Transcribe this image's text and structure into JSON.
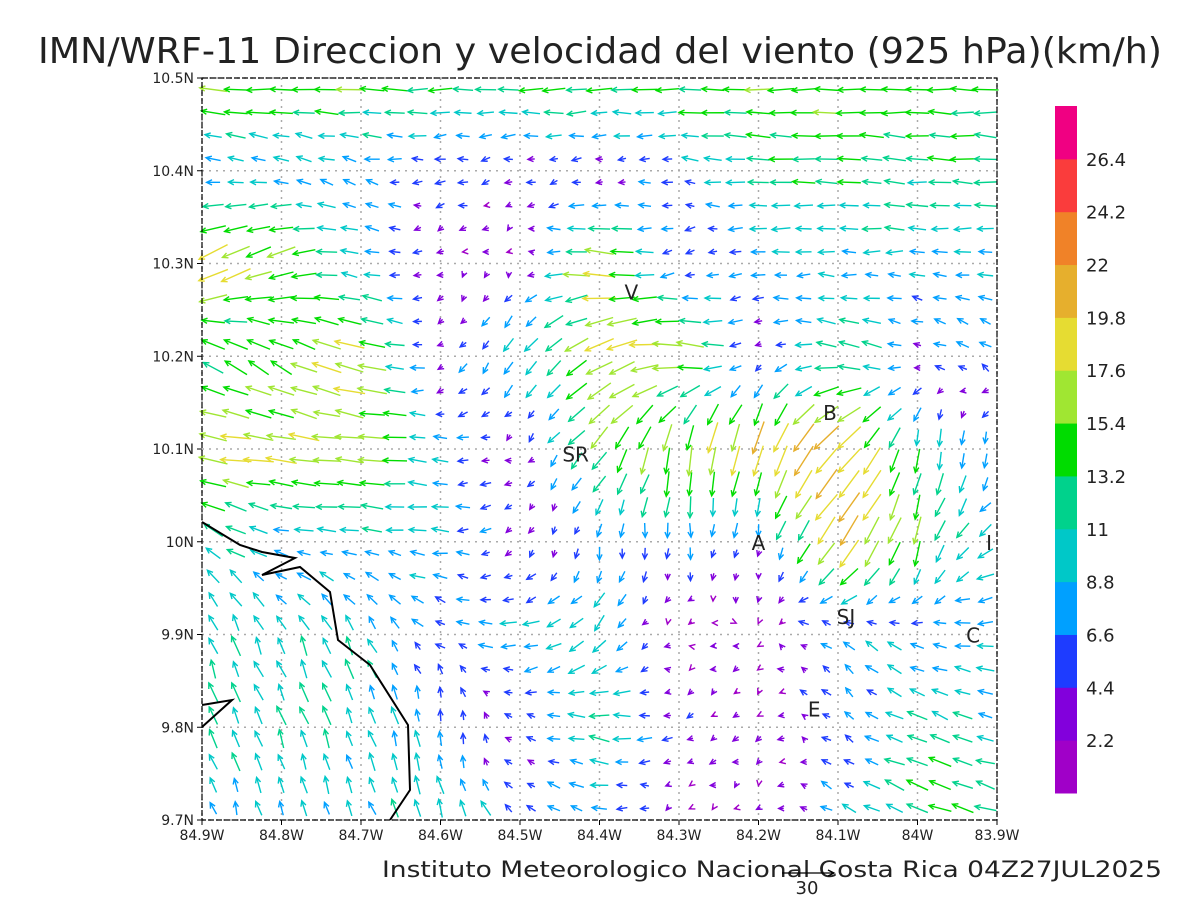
{
  "title": "IMN/WRF-11 Direccion y velocidad del viento (925 hPa)(km/h)",
  "footer": "Instituto Meteorologico Nacional Costa Rica 04Z27JUL2025",
  "reference_vector_label": "30",
  "places": [
    {
      "label": "V",
      "lon": -84.36,
      "lat": 10.27
    },
    {
      "label": "SR",
      "lon": -84.43,
      "lat": 10.095
    },
    {
      "label": "B",
      "lon": -84.11,
      "lat": 10.14
    },
    {
      "label": "A",
      "lon": -84.2,
      "lat": 10.0
    },
    {
      "label": "SJ",
      "lon": -84.09,
      "lat": 9.92
    },
    {
      "label": "C",
      "lon": -83.93,
      "lat": 9.9
    },
    {
      "label": "E",
      "lon": -84.13,
      "lat": 9.82
    },
    {
      "label": "I",
      "lon": -83.91,
      "lat": 10.0
    }
  ],
  "colorbar": {
    "labels": [
      "2.2",
      "4.4",
      "6.6",
      "8.8",
      "11",
      "13.2",
      "15.4",
      "17.6",
      "19.8",
      "22",
      "24.2",
      "26.4"
    ],
    "colors": [
      "#a000c8",
      "#8200dc",
      "#1e3cff",
      "#00a0ff",
      "#00c8c8",
      "#00d28c",
      "#00dc00",
      "#a0e632",
      "#e6dc32",
      "#e6af2d",
      "#f08228",
      "#fa3c3c",
      "#f00082"
    ]
  },
  "chart_data": {
    "type": "vector-field",
    "title": "IMN/WRF-11 Direccion y velocidad del viento (925 hPa)(km/h)",
    "units": "km/h",
    "x_ticks": [
      "84.9W",
      "84.8W",
      "84.7W",
      "84.6W",
      "84.5W",
      "84.4W",
      "84.3W",
      "84.2W",
      "84.1W",
      "84W",
      "83.9W"
    ],
    "y_ticks": [
      "9.7N",
      "9.8N",
      "9.9N",
      "10N",
      "10.1N",
      "10.2N",
      "10.3N",
      "10.4N",
      "10.5N"
    ],
    "xlim": [
      -84.9,
      -83.9
    ],
    "ylim": [
      9.7,
      10.5
    ],
    "grid": true,
    "grid_lons": [
      -84.9,
      -84.8,
      -84.7,
      -84.6,
      -84.5,
      -84.4,
      -84.3,
      -84.2,
      -84.1,
      -84.0,
      -83.9
    ],
    "grid_lats_top_to_bottom": [
      10.5,
      10.4,
      10.3,
      10.2,
      10.1,
      10.0,
      9.9,
      9.8,
      9.7
    ],
    "u": [
      [
        -17,
        -15,
        -15,
        -14,
        -14,
        -15,
        -15,
        -15,
        -15,
        -14,
        -14
      ],
      [
        -8,
        -8,
        -7,
        -5,
        -4,
        -3,
        -6,
        -13,
        -13,
        -13,
        -13
      ],
      [
        -18,
        -16,
        -8,
        -2,
        -1,
        -20,
        -3,
        -8,
        -8,
        -8,
        -8
      ],
      [
        -12,
        -12,
        -18,
        -2,
        -6,
        -15,
        -20,
        -3,
        -15,
        -5,
        -6
      ],
      [
        -18,
        -18,
        -17,
        -8,
        -2,
        -10,
        -2,
        -6,
        -15,
        -2,
        0
      ],
      [
        -10,
        -9,
        -9,
        -9,
        -2,
        0,
        0,
        0,
        -12,
        -4,
        -10
      ],
      [
        -4,
        -4,
        -4,
        -5,
        -10,
        -8,
        -1,
        -1,
        -6,
        -6,
        -10
      ],
      [
        -4,
        -4,
        -4,
        0,
        -2,
        -12,
        -4,
        -2,
        -4,
        -12,
        -8
      ],
      [
        -2,
        -2,
        -3,
        -4,
        -6,
        -8,
        -1,
        -1,
        -6,
        -13,
        -12
      ]
    ],
    "v": [
      [
        1,
        0,
        0,
        0,
        0,
        0,
        0,
        0,
        0,
        0,
        0
      ],
      [
        3,
        3,
        2,
        -1,
        -1,
        -1,
        1,
        1,
        1,
        1,
        1
      ],
      [
        -10,
        -6,
        2,
        -1,
        -1,
        2,
        -2,
        0,
        0,
        0,
        0
      ],
      [
        8,
        8,
        4,
        -2,
        -10,
        -8,
        3,
        -2,
        3,
        2,
        5
      ],
      [
        2,
        2,
        2,
        0,
        -1,
        -12,
        -18,
        -20,
        -15,
        -12,
        -8
      ],
      [
        8,
        1,
        1,
        1,
        -2,
        -6,
        -7,
        -5,
        -18,
        -16,
        -3
      ],
      [
        10,
        10,
        10,
        3,
        -2,
        -8,
        1,
        -1,
        5,
        3,
        0
      ],
      [
        10,
        10,
        10,
        7,
        1,
        2,
        -2,
        -2,
        3,
        5,
        2
      ],
      [
        8,
        8,
        8,
        12,
        4,
        1,
        -1,
        -1,
        4,
        5,
        4
      ]
    ]
  }
}
